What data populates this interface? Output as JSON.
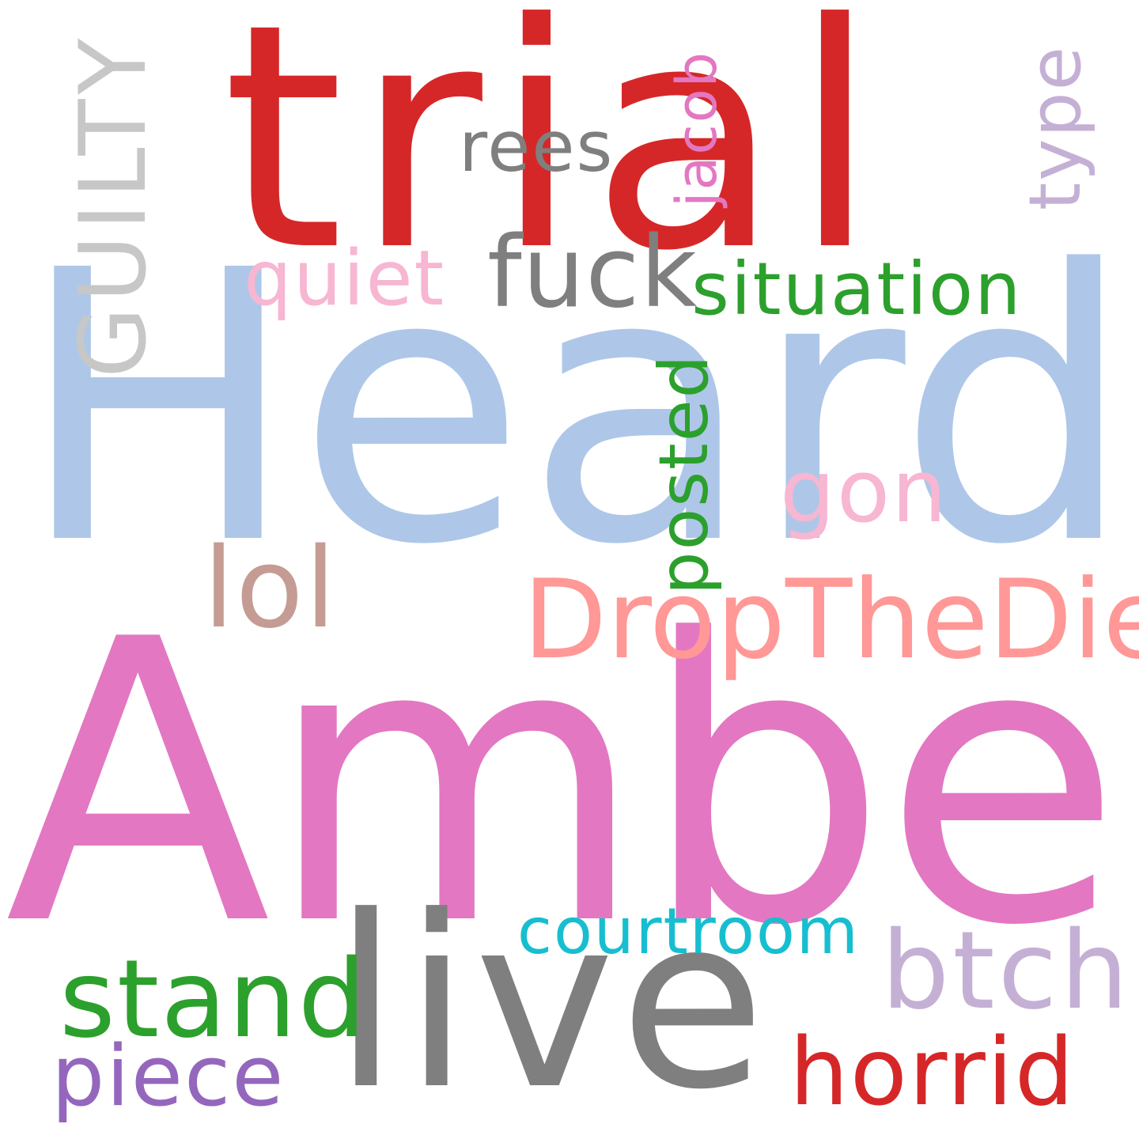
{
  "words": {
    "trial": {
      "text": "trial",
      "color": "#d62728"
    },
    "heard": {
      "text": "Heard",
      "color": "#aec7e8"
    },
    "amber": {
      "text": "Amber",
      "color": "#e377c2"
    },
    "live": {
      "text": "live",
      "color": "#7f7f7f"
    },
    "guilty": {
      "text": "GUILTY",
      "color": "#c7c7c7"
    },
    "rees": {
      "text": "rees",
      "color": "#7f7f7f"
    },
    "jacob": {
      "text": "jacob",
      "color": "#e377c2"
    },
    "type": {
      "text": "type",
      "color": "#c5b0d5"
    },
    "quiet": {
      "text": "quiet",
      "color": "#f7b6d2"
    },
    "fuck": {
      "text": "fuck",
      "color": "#7f7f7f"
    },
    "situation": {
      "text": "situation",
      "color": "#2ca02c"
    },
    "posted": {
      "text": "posted",
      "color": "#2ca02c"
    },
    "gon": {
      "text": "gon",
      "color": "#f7b6d2"
    },
    "lol": {
      "text": "lol",
      "color": "#c49c94"
    },
    "dropthedie": {
      "text": "DropTheDie",
      "color": "#ff9896"
    },
    "courtroom": {
      "text": "courtroom",
      "color": "#17becf"
    },
    "btch": {
      "text": "btch",
      "color": "#c5b0d5"
    },
    "stand": {
      "text": "stand",
      "color": "#2ca02c"
    },
    "piece": {
      "text": "piece",
      "color": "#9467bd"
    },
    "horrid": {
      "text": "horrid",
      "color": "#d62728"
    }
  }
}
